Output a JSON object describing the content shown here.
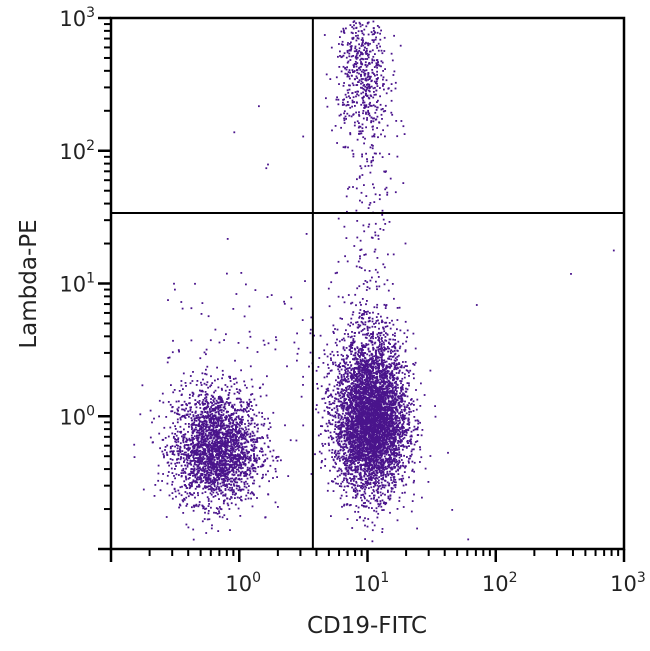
{
  "chart_data": {
    "type": "scatter",
    "title": "",
    "xlabel": "CD19-FITC",
    "ylabel": "Lambda-PE",
    "x_scale": "log",
    "y_scale": "log",
    "xlim": [
      0.1,
      1000
    ],
    "ylim": [
      0.1,
      1000
    ],
    "x_ticks": [
      {
        "base": "10",
        "exp": "0",
        "value": 1
      },
      {
        "base": "10",
        "exp": "1",
        "value": 10
      },
      {
        "base": "10",
        "exp": "2",
        "value": 100
      },
      {
        "base": "10",
        "exp": "3",
        "value": 1000
      }
    ],
    "y_ticks": [
      {
        "base": "10",
        "exp": "0",
        "value": 1
      },
      {
        "base": "10",
        "exp": "1",
        "value": 10
      },
      {
        "base": "10",
        "exp": "2",
        "value": 100
      },
      {
        "base": "10",
        "exp": "3",
        "value": 1000
      }
    ],
    "grid": false,
    "legend": "none",
    "point_color": "#4a148c",
    "quadrant_gates": {
      "x": 3.75,
      "y": 34
    },
    "populations": [
      {
        "x_center": 0.65,
        "y_center": 0.57,
        "x_sd_decades": 0.17,
        "y_sd_decades": 0.2,
        "count": 2600
      },
      {
        "x_center": 10.5,
        "y_center": 0.95,
        "x_sd_decades": 0.14,
        "y_sd_decades": 0.27,
        "count": 5200
      },
      {
        "x_center": 9.0,
        "y_center": 420,
        "x_sd_decades": 0.1,
        "y_sd_decades": 0.25,
        "count": 550
      }
    ],
    "outliers": [
      [
        1.4,
        220
      ],
      [
        0.9,
        140
      ],
      [
        3.1,
        130
      ],
      [
        1.65,
        80
      ],
      [
        1.6,
        75
      ],
      [
        0.8,
        22
      ],
      [
        3.3,
        24
      ],
      [
        380,
        12
      ],
      [
        820,
        18
      ],
      [
        0.5,
        6
      ],
      [
        2.5,
        8
      ],
      [
        1.9,
        4
      ],
      [
        2.8,
        3
      ],
      [
        0.3,
        0.9
      ],
      [
        70,
        7
      ],
      [
        60,
        0.12
      ],
      [
        45,
        0.2
      ],
      [
        0.15,
        0.5
      ]
    ]
  }
}
